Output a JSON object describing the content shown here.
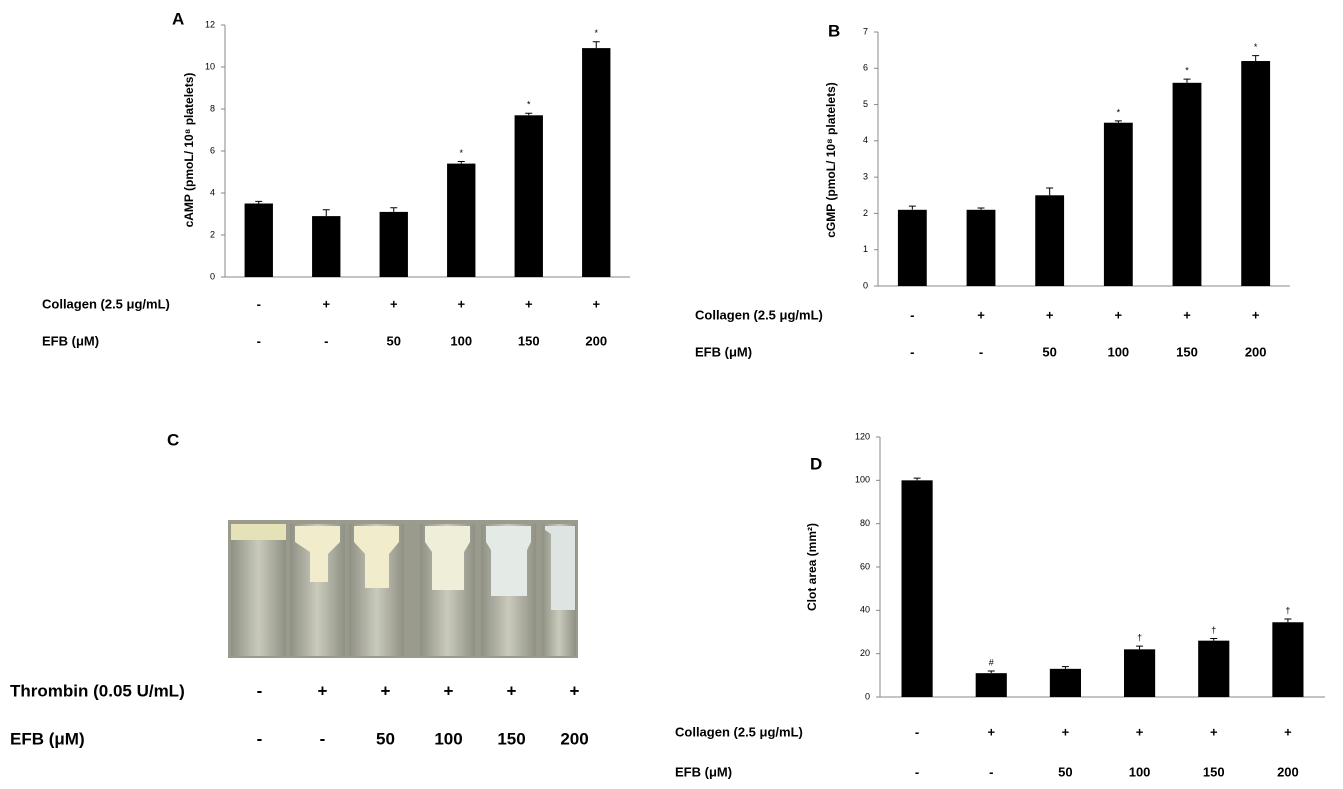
{
  "chart_data": [
    {
      "type": "bar",
      "panel": "A",
      "y_label": "cAMP (pmoL/ 10⁸ platelets)",
      "color": "#000000",
      "values": [
        3.5,
        2.9,
        3.1,
        5.4,
        7.7,
        10.9
      ],
      "errors": [
        0.1,
        0.3,
        0.2,
        0.1,
        0.1,
        0.3
      ],
      "value_markers": [
        null,
        null,
        null,
        "*",
        "*",
        "*"
      ],
      "ylim": [
        0,
        12
      ],
      "yticks": [
        0,
        2,
        4,
        6,
        8,
        10,
        12
      ],
      "treatments": [
        {
          "label": "Collagen (2.5 μg/mL)",
          "values": [
            "-",
            "+",
            "+",
            "+",
            "+",
            "+"
          ]
        },
        {
          "label": "EFB (μM)",
          "values": [
            "-",
            "-",
            "50",
            "100",
            "150",
            "200"
          ]
        }
      ]
    },
    {
      "type": "bar",
      "panel": "B",
      "y_label": "cGMP (pmoL/ 10⁸ platelets)",
      "color": "#000000",
      "values": [
        2.1,
        2.1,
        2.5,
        4.5,
        5.6,
        6.2
      ],
      "errors": [
        0.1,
        0.05,
        0.2,
        0.05,
        0.1,
        0.15
      ],
      "value_markers": [
        null,
        null,
        null,
        "*",
        "*",
        "*"
      ],
      "ylim": [
        0,
        7
      ],
      "yticks": [
        0,
        1,
        2,
        3,
        4,
        5,
        6,
        7
      ],
      "treatments": [
        {
          "label": "Collagen (2.5 μg/mL)",
          "values": [
            "-",
            "+",
            "+",
            "+",
            "+",
            "+"
          ]
        },
        {
          "label": "EFB (μM)",
          "values": [
            "-",
            "-",
            "50",
            "100",
            "150",
            "200"
          ]
        }
      ]
    },
    {
      "type": "bar",
      "panel": "D",
      "y_label": "Clot area (mm²)",
      "color": "#000000",
      "values": [
        100,
        11,
        13,
        22,
        26,
        34.5
      ],
      "errors": [
        1,
        1,
        1,
        1.5,
        1,
        1.5
      ],
      "value_markers": [
        null,
        "#",
        null,
        "†",
        "†",
        "†"
      ],
      "ylim": [
        0,
        120
      ],
      "yticks": [
        0,
        20,
        40,
        60,
        80,
        100,
        120
      ],
      "treatments": [
        {
          "label": "Collagen (2.5 μg/mL)",
          "values": [
            "-",
            "+",
            "+",
            "+",
            "+",
            "+"
          ]
        },
        {
          "label": "EFB (μM)",
          "values": [
            "-",
            "-",
            "50",
            "100",
            "150",
            "200"
          ]
        }
      ]
    }
  ],
  "panel_c": {
    "panel": "C",
    "treatments": [
      {
        "label": "Thrombin (0.05 U/mL)",
        "values": [
          "-",
          "+",
          "+",
          "+",
          "+",
          "+"
        ]
      },
      {
        "label": "EFB (μM)",
        "values": [
          "-",
          "-",
          "50",
          "100",
          "150",
          "200"
        ]
      }
    ]
  }
}
